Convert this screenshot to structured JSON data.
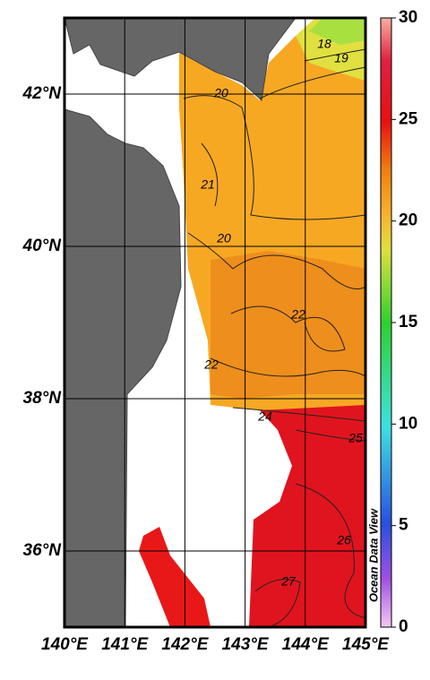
{
  "map": {
    "x_axis": {
      "lim": [
        140,
        145
      ],
      "ticks": [
        {
          "value": 140,
          "label": "140°E"
        },
        {
          "value": 141,
          "label": "141°E"
        },
        {
          "value": 142,
          "label": "142°E"
        },
        {
          "value": 143,
          "label": "143°E"
        },
        {
          "value": 144,
          "label": "144°E"
        },
        {
          "value": 145,
          "label": "145°E"
        }
      ]
    },
    "y_axis": {
      "lim": [
        35,
        43
      ],
      "ticks": [
        {
          "value": 36,
          "label": "36°N"
        },
        {
          "value": 38,
          "label": "38°N"
        },
        {
          "value": 40,
          "label": "40°N"
        },
        {
          "value": 42,
          "label": "42°N"
        }
      ]
    },
    "colorbar": {
      "lim": [
        0,
        30
      ],
      "ticks": [
        0,
        5,
        10,
        15,
        20,
        25,
        30
      ]
    },
    "contour_labels": [
      18,
      19,
      20,
      21,
      20,
      22,
      22,
      24,
      25,
      26,
      27
    ],
    "watermark": "Ocean Data View"
  }
}
